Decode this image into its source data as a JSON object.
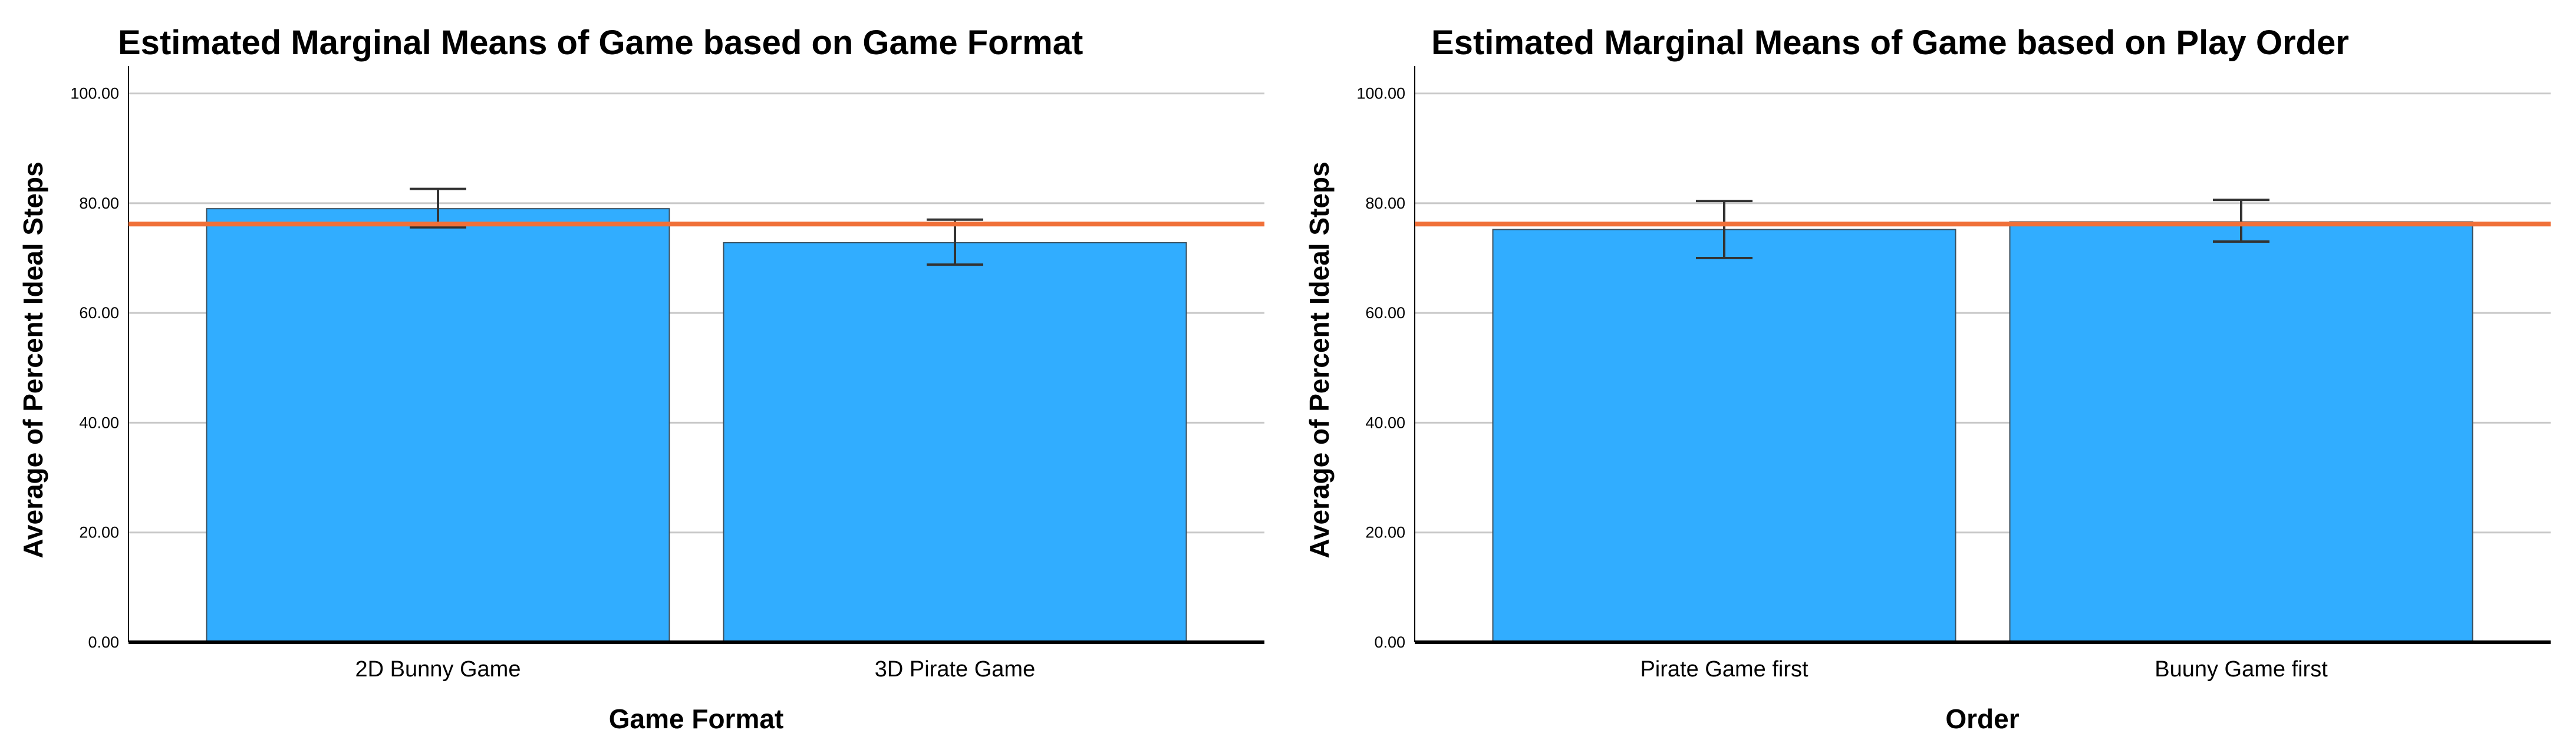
{
  "chart_data": [
    {
      "type": "bar",
      "title": "Estimated Marginal Means of Game based on Game Format",
      "xlabel": "Game Format",
      "ylabel": "Average of Percent Ideal Steps",
      "categories": [
        "2D Bunny Game",
        "3D Pirate Game"
      ],
      "values": [
        79.0,
        72.8
      ],
      "error_bars": [
        [
          75.6,
          82.6
        ],
        [
          68.8,
          77.0
        ]
      ],
      "reference_line": 76.2,
      "ylim": [
        0,
        105
      ],
      "yticks": [
        "0.00",
        "20.00",
        "40.00",
        "60.00",
        "80.00",
        "100.00"
      ],
      "grid": true
    },
    {
      "type": "bar",
      "title": "Estimated Marginal Means of Game based on Play Order",
      "xlabel": "Order",
      "ylabel": "Average of Percent Ideal Steps",
      "categories": [
        "Pirate Game first",
        "Buuny Game first"
      ],
      "values": [
        75.2,
        76.6
      ],
      "error_bars": [
        [
          70.0,
          80.4
        ],
        [
          73.0,
          80.6
        ]
      ],
      "reference_line": 76.2,
      "ylim": [
        0,
        105
      ],
      "yticks": [
        "0.00",
        "20.00",
        "40.00",
        "60.00",
        "80.00",
        "100.00"
      ],
      "grid": true
    }
  ],
  "colors": {
    "bar_fill": "#31adff",
    "bar_stroke": "#3a4f5e",
    "reference_line": "#f07038",
    "gridline": "#c8c8c8",
    "axis": "#000000",
    "error_bar": "#333333"
  }
}
